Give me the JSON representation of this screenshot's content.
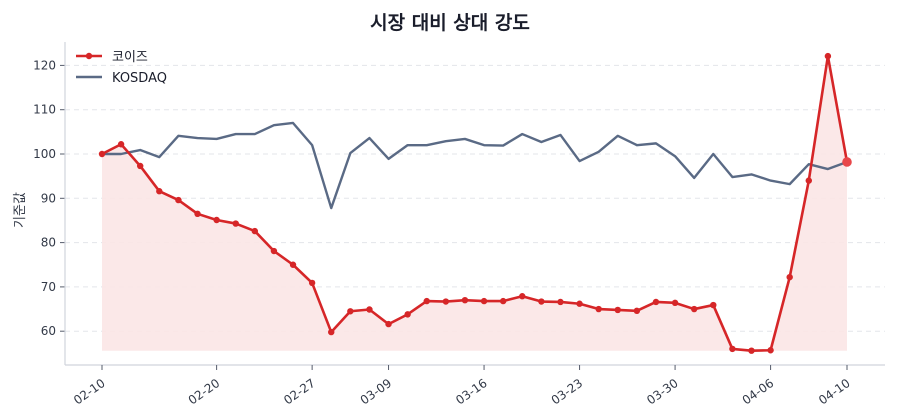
{
  "chart_data": {
    "type": "line",
    "title": "시장 대비 상대 강도",
    "xlabel": "",
    "ylabel": "기준값",
    "ylim": [
      52.5,
      125.5
    ],
    "yticks": [
      60,
      70,
      80,
      90,
      100,
      110,
      120
    ],
    "grid": true,
    "legend_position": "upper left",
    "x_tick_labels": [
      {
        "index": 0,
        "label": "02-10"
      },
      {
        "index": 6,
        "label": "02-20"
      },
      {
        "index": 11,
        "label": "02-27"
      },
      {
        "index": 15,
        "label": "03-09"
      },
      {
        "index": 20,
        "label": "03-16"
      },
      {
        "index": 25,
        "label": "03-23"
      },
      {
        "index": 30,
        "label": "03-30"
      },
      {
        "index": 35,
        "label": "04-06"
      },
      {
        "index": 39,
        "label": "04-10"
      }
    ],
    "point_count": 40,
    "series": [
      {
        "name": "코이즈",
        "color": "#d62628",
        "last_marker_color": "#e8474a",
        "marker": "circle",
        "fill_below": true,
        "fill_color": "#fbe6e6",
        "values": [
          100,
          102.2,
          97.3,
          91.6,
          89.6,
          86.5,
          85.1,
          84.3,
          82.6,
          78.1,
          75.0,
          70.9,
          59.8,
          64.5,
          64.9,
          61.6,
          63.8,
          66.8,
          66.7,
          67.0,
          66.8,
          66.8,
          67.9,
          66.7,
          66.6,
          66.2,
          65.0,
          64.8,
          64.6,
          66.6,
          66.4,
          65.0,
          65.9,
          56.0,
          55.6,
          55.7,
          72.2,
          94.0,
          122.1,
          98.2
        ]
      },
      {
        "name": "KOSDAQ",
        "color": "#5a6a85",
        "marker": "none",
        "values": [
          100,
          100,
          100.9,
          99.3,
          104.1,
          103.6,
          103.4,
          104.5,
          104.5,
          106.5,
          107.0,
          102.0,
          87.8,
          100.2,
          103.6,
          98.9,
          102.0,
          102.0,
          102.9,
          103.4,
          102.0,
          101.9,
          104.5,
          102.7,
          104.3,
          98.4,
          100.5,
          104.1,
          102.0,
          102.4,
          99.5,
          94.6,
          100.0,
          94.8,
          95.4,
          94.0,
          93.2,
          97.7,
          96.6,
          98.2
        ]
      }
    ]
  },
  "legend": {
    "items": [
      {
        "label": "코이즈"
      },
      {
        "label": "KOSDAQ"
      }
    ]
  }
}
